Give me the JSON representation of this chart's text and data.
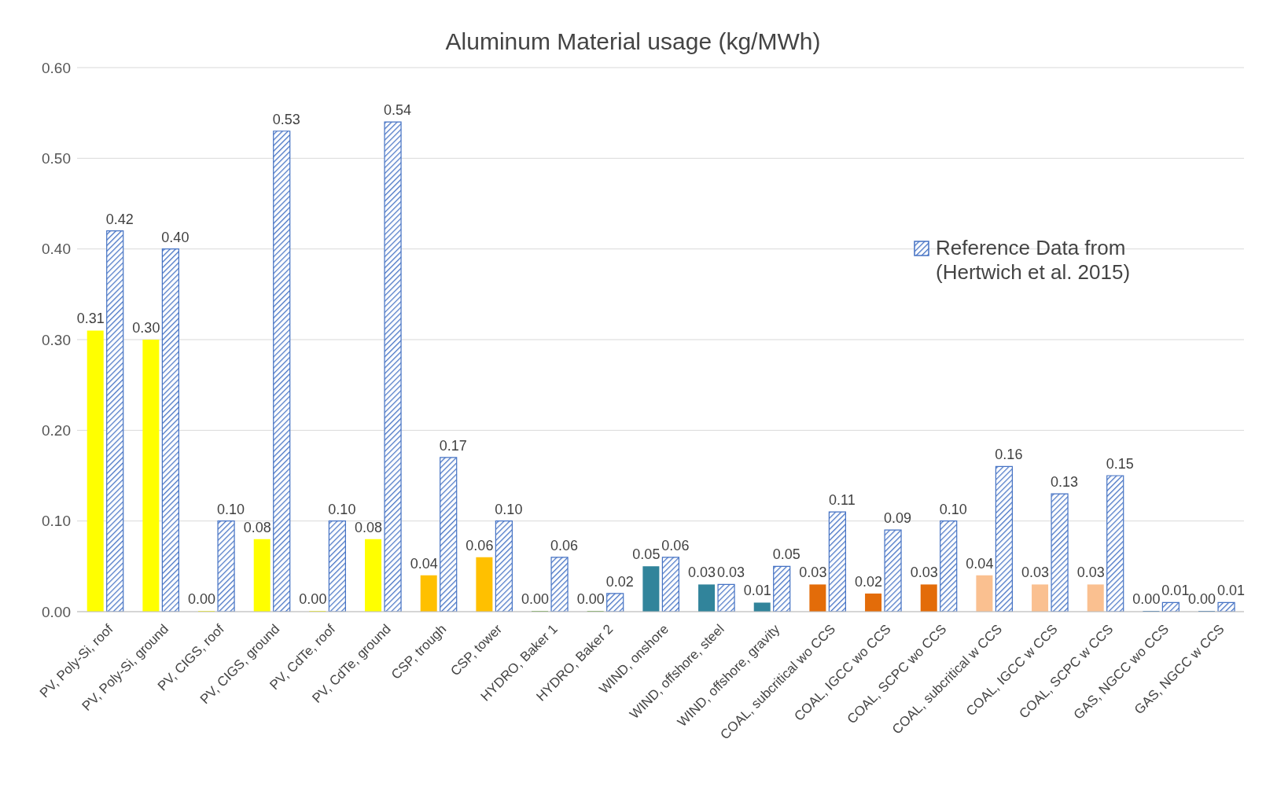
{
  "chart_data": {
    "type": "bar",
    "title": "Aluminum Material usage (kg/MWh)",
    "categories": [
      "PV, Poly-Si, roof",
      "PV, Poly-Si, ground",
      "PV, CIGS, roof",
      "PV, CIGS, ground",
      "PV, CdTe, roof",
      "PV, CdTe, ground",
      "CSP, trough",
      "CSP, tower",
      "HYDRO, Baker 1",
      "HYDRO, Baker 2",
      "WIND, onshore",
      "WIND, offshore, steel",
      "WIND, offshore, gravity",
      "COAL, subcritical wo CCS",
      "COAL, IGCC wo CCS",
      "COAL, SCPC wo CCS",
      "COAL, subcritical w CCS",
      "COAL, IGCC w CCS",
      "COAL, SCPC w CCS",
      "GAS, NGCC wo CCS",
      "GAS, NGCC w CCS"
    ],
    "series": [
      {
        "colors": [
          "#ffff00",
          "#ffff00",
          "#ffff00",
          "#ffff00",
          "#ffff00",
          "#ffff00",
          "#ffc000",
          "#ffc000",
          "#70ad47",
          "#70ad47",
          "#31849b",
          "#31849b",
          "#31849b",
          "#e36c09",
          "#e36c09",
          "#e36c09",
          "#fac090",
          "#fac090",
          "#fac090",
          "#2e75b6",
          "#2e75b6"
        ],
        "values": [
          0.31,
          0.3,
          0.0,
          0.08,
          0.0,
          0.08,
          0.04,
          0.06,
          0.0,
          0.0,
          0.05,
          0.03,
          0.01,
          0.03,
          0.02,
          0.03,
          0.04,
          0.03,
          0.03,
          0.0,
          0.0
        ],
        "value_labels": [
          "0.31",
          "0.30",
          "0.00",
          "0.08",
          "0.00",
          "0.08",
          "0.04",
          "0.06",
          "0.00",
          "0.00",
          "0.05",
          "0.03",
          "0.01",
          "0.03",
          "0.02",
          "0.03",
          "0.04",
          "0.03",
          "0.03",
          "0.00",
          "0.00"
        ]
      },
      {
        "name": "Reference Data from (Hertwich et al. 2015)",
        "color": "#4472c4",
        "values": [
          0.42,
          0.4,
          0.1,
          0.53,
          0.1,
          0.54,
          0.17,
          0.1,
          0.06,
          0.02,
          0.06,
          0.03,
          0.05,
          0.11,
          0.09,
          0.1,
          0.16,
          0.13,
          0.15,
          0.01,
          0.01
        ],
        "value_labels": [
          "0.42",
          "0.40",
          "0.10",
          "0.53",
          "0.10",
          "0.54",
          "0.17",
          "0.10",
          "0.06",
          "0.02",
          "0.06",
          "0.03",
          "0.05",
          "0.11",
          "0.09",
          "0.10",
          "0.16",
          "0.13",
          "0.15",
          "0.01",
          "0.01"
        ]
      }
    ],
    "ylim": [
      0,
      0.6
    ],
    "yticks": [
      {
        "value": 0,
        "label": "0.00"
      },
      {
        "value": 0.1,
        "label": "0.10"
      },
      {
        "value": 0.2,
        "label": "0.20"
      },
      {
        "value": 0.3,
        "label": "0.30"
      },
      {
        "value": 0.4,
        "label": "0.40"
      },
      {
        "value": 0.5,
        "label": "0.50"
      },
      {
        "value": 0.6,
        "label": "0.60"
      }
    ],
    "grid": "y",
    "legend": "top right"
  }
}
